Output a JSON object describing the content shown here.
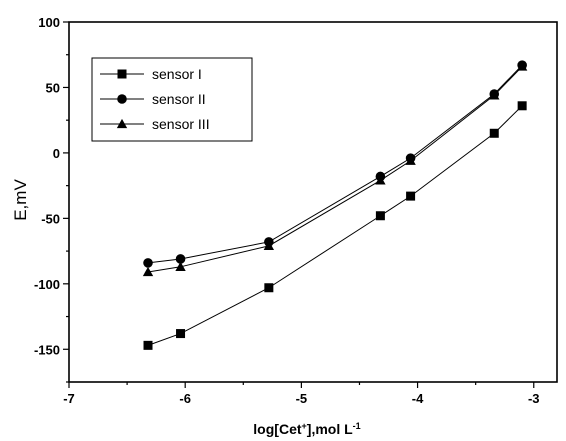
{
  "chart_data": {
    "type": "line",
    "title": "",
    "xlabel_parts": {
      "prefix": "log[Cet",
      "sup1": "+",
      "middle": "],mol L",
      "sup2": "-1"
    },
    "ylabel": "E,mV",
    "xlim": [
      -7,
      -2.8
    ],
    "ylim": [
      -175,
      100
    ],
    "xticks": [
      -7,
      -6,
      -5,
      -4,
      -3
    ],
    "xtick_labels": [
      "-7",
      "-6",
      "-5",
      "-4",
      "-3"
    ],
    "yticks": [
      -150,
      -100,
      -50,
      0,
      50,
      100
    ],
    "ytick_labels": [
      "-150",
      "-100",
      "-50",
      "0",
      "50",
      "100"
    ],
    "legend_position": "top-left",
    "grid": false,
    "series": [
      {
        "name": "sensor I",
        "marker": "square",
        "x": [
          -6.32,
          -6.04,
          -5.28,
          -4.32,
          -4.06,
          -3.34,
          -3.1
        ],
        "y": [
          -147,
          -138,
          -103,
          -48,
          -33,
          15,
          36
        ]
      },
      {
        "name": "sensor II",
        "marker": "circle",
        "x": [
          -6.32,
          -6.04,
          -5.28,
          -4.32,
          -4.06,
          -3.34,
          -3.1
        ],
        "y": [
          -84,
          -81,
          -68,
          -18,
          -4,
          45,
          67
        ]
      },
      {
        "name": "sensor III",
        "marker": "triangle",
        "x": [
          -6.32,
          -6.04,
          -5.28,
          -4.32,
          -4.06,
          -3.34,
          -3.1
        ],
        "y": [
          -91,
          -87,
          -71,
          -21,
          -6,
          44,
          66
        ]
      }
    ]
  }
}
